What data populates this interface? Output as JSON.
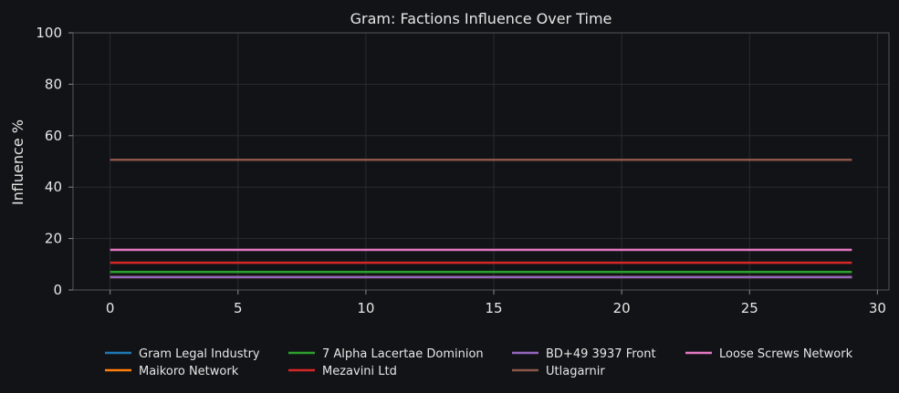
{
  "chart_data": {
    "type": "line",
    "title": "Gram: Factions Influence Over Time",
    "xlabel": "",
    "ylabel": "Influence %",
    "xlim": [
      -1.45,
      30.45
    ],
    "ylim": [
      0,
      100
    ],
    "xticks": [
      0,
      5,
      10,
      15,
      20,
      25,
      30
    ],
    "yticks": [
      0,
      20,
      40,
      60,
      80,
      100
    ],
    "grid": true,
    "legend_position": "bottom",
    "x_start": 0,
    "x_end": 29,
    "series": [
      {
        "name": "Gram Legal Industry",
        "color": "#1f77b4",
        "value": 5.0
      },
      {
        "name": "Maikoro Network",
        "color": "#ff7f0e",
        "value": 5.0
      },
      {
        "name": "7 Alpha Lacertae Dominion",
        "color": "#2ca02c",
        "value": 7.0
      },
      {
        "name": "Mezavini Ltd",
        "color": "#d62728",
        "value": 10.6
      },
      {
        "name": "BD+49 3937 Front",
        "color": "#9467bd",
        "value": 5.0
      },
      {
        "name": "Utlagarnir",
        "color": "#8c564b",
        "value": 50.6
      },
      {
        "name": "Loose Screws Network",
        "color": "#e377c2",
        "value": 15.6
      }
    ]
  }
}
